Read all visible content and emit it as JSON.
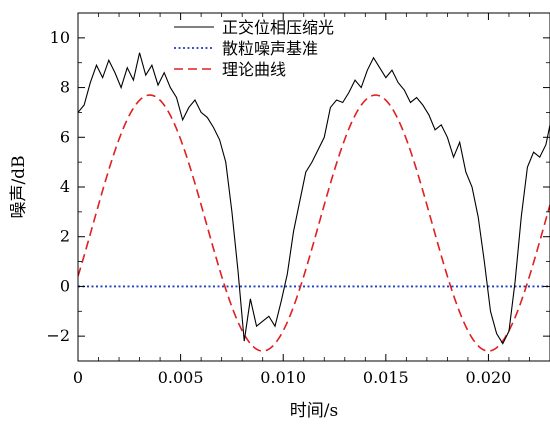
{
  "chart_data": {
    "type": "line",
    "xlabel": "时间/s",
    "ylabel": "噪声/dB",
    "xlim": [
      0,
      0.023
    ],
    "ylim": [
      -3,
      11
    ],
    "xticks": [
      "0",
      "0.005",
      "0.010",
      "0.015",
      "0.020"
    ],
    "yticks": [
      "−2",
      "0",
      "2",
      "4",
      "6",
      "8",
      "10"
    ],
    "grid": false,
    "legend_position": "top-right",
    "series": [
      {
        "name": "正交位相压缩光",
        "style": "solid",
        "color": "#000000",
        "x": [
          0,
          0.0003,
          0.0006,
          0.0009,
          0.0012,
          0.0015,
          0.0018,
          0.0021,
          0.0024,
          0.0027,
          0.003,
          0.0033,
          0.0036,
          0.0039,
          0.0042,
          0.0045,
          0.0048,
          0.0051,
          0.0054,
          0.0057,
          0.006,
          0.0063,
          0.0066,
          0.0069,
          0.0072,
          0.0075,
          0.0078,
          0.0081,
          0.0084,
          0.0087,
          0.009,
          0.0093,
          0.0096,
          0.0099,
          0.0102,
          0.0105,
          0.0108,
          0.0111,
          0.0114,
          0.0117,
          0.012,
          0.0123,
          0.0126,
          0.0129,
          0.0132,
          0.0135,
          0.0138,
          0.0141,
          0.0144,
          0.0147,
          0.015,
          0.0153,
          0.0156,
          0.0159,
          0.0162,
          0.0165,
          0.0168,
          0.0171,
          0.0174,
          0.0177,
          0.018,
          0.0183,
          0.0186,
          0.0189,
          0.0192,
          0.0195,
          0.0198,
          0.0201,
          0.0204,
          0.0207,
          0.021,
          0.0213,
          0.0216,
          0.0219,
          0.0222,
          0.0225,
          0.0228,
          0.023
        ],
        "y": [
          7.0,
          7.3,
          8.2,
          8.9,
          8.4,
          9.1,
          8.6,
          8.0,
          8.8,
          8.3,
          9.4,
          8.5,
          8.9,
          8.1,
          8.6,
          8.0,
          7.6,
          6.7,
          7.2,
          7.5,
          7.0,
          6.8,
          6.4,
          5.9,
          5.0,
          3.0,
          0.6,
          -2.2,
          -0.5,
          -1.6,
          -1.4,
          -1.2,
          -1.6,
          -0.6,
          0.5,
          2.2,
          3.4,
          4.6,
          5.0,
          5.5,
          6.0,
          7.2,
          7.5,
          7.4,
          7.8,
          8.3,
          8.0,
          8.7,
          9.2,
          8.8,
          8.4,
          8.7,
          8.2,
          7.9,
          7.4,
          7.6,
          7.3,
          6.9,
          6.3,
          6.5,
          6.0,
          5.2,
          5.8,
          4.6,
          4.0,
          2.8,
          1.0,
          -1.0,
          -1.9,
          -2.3,
          -1.8,
          0.2,
          2.8,
          4.8,
          5.4,
          5.2,
          5.7,
          6.5
        ]
      },
      {
        "name": "散粒噪声基准",
        "style": "dotted",
        "color": "#1f3fbf",
        "x": [
          0,
          0.023
        ],
        "y": [
          0,
          0
        ]
      },
      {
        "name": "理论曲线",
        "style": "dashed",
        "color": "#e02020",
        "function": "5.15*cos(2*pi*(x-0.0035)/0.011)+2.55",
        "x_range": [
          0,
          0.023
        ],
        "samples": 240
      }
    ]
  }
}
